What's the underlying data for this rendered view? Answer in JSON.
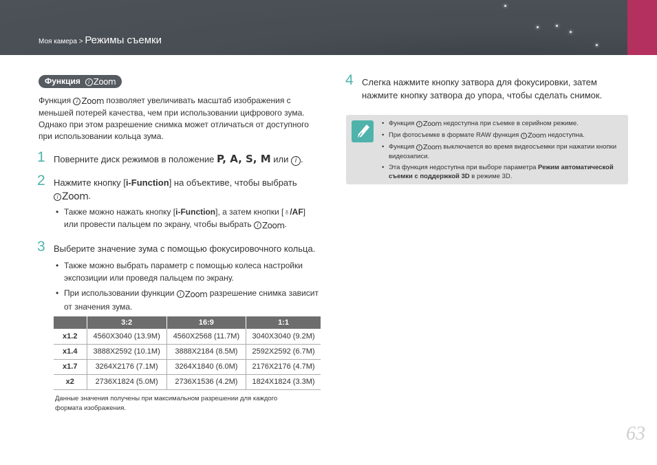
{
  "header": {
    "breadcrumb_parent": "Моя камера",
    "separator": " > ",
    "breadcrumb_current": "Режимы съемки",
    "accent": "#b3305f"
  },
  "section": {
    "title": "Функция",
    "icon_i": "i",
    "icon_zoom": "Zoom"
  },
  "intro": {
    "a": "Функция",
    "b": "позволяет увеличивать масштаб изображения с меньшей потерей качества, чем при использовании цифрового зума. Однако при этом разрешение снимка может отличаться от доступного при использовании кольца зума."
  },
  "steps": [
    {
      "num": "1",
      "text": "Поверните диск режимов в положение",
      "modes": "P, A, S, M",
      "or": "или"
    },
    {
      "num": "2",
      "text_a": "Нажмите кнопку [",
      "key": "i-Function",
      "text_b": "] на объективе, чтобы выбрать",
      "bullet_a": "Также можно нажать кнопку [",
      "bullet_key": "i-Function",
      "bullet_b": "], а затем кнопки [",
      "bullet_keys": "♁/AF",
      "bullet_c": "] или провести пальцем по экрану, чтобы выбрать"
    },
    {
      "num": "3",
      "text": "Выберите значение зума с помощью фокусировочного кольца.",
      "bullets": [
        "Также можно выбрать параметр с помощью колеса настройки экспозиции или проведя пальцем по экрану.",
        "При использовании функции",
        "разрешение снимка зависит от значения зума."
      ]
    },
    {
      "num": "4",
      "text": "Слегка нажмите кнопку затвора для фокусировки, затем нажмите кнопку затвора до упора, чтобы сделать снимок."
    }
  ],
  "table": {
    "headers": [
      "",
      "3:2",
      "16:9",
      "1:1"
    ],
    "rows": [
      [
        "x1.2",
        "4560X3040 (13.9M)",
        "4560X2568 (11.7M)",
        "3040X3040 (9.2M)"
      ],
      [
        "x1.4",
        "3888X2592 (10.1M)",
        "3888X2184 (8.5M)",
        "2592X2592 (6.7M)"
      ],
      [
        "x1.7",
        "3264X2176 (7.1M)",
        "3264X1840 (6.0M)",
        "2176X2176 (4.7M)"
      ],
      [
        "x2",
        "2736X1824 (5.0M)",
        "2736X1536 (4.2M)",
        "1824X1824 (3.3M)"
      ]
    ],
    "footnote": "Данные значения получены при максимальном разрешении для каждого формата изображения."
  },
  "note": {
    "icon": "pen-icon",
    "items": [
      {
        "a": "Функция",
        "b": "недоступна при съемке в серийном режиме."
      },
      {
        "a": "При фотосъемке в формате RAW функция",
        "b": "недоступна."
      },
      {
        "a": "Функция",
        "b": "выключается во время видеосъемки при нажатии кнопки видеозаписи."
      },
      {
        "a": "Эта функция недоступна при выборе параметра ",
        "bold": "Режим автоматической съемки с поддержкой 3D",
        "b": " в режиме 3D."
      }
    ]
  },
  "page_number": "63"
}
